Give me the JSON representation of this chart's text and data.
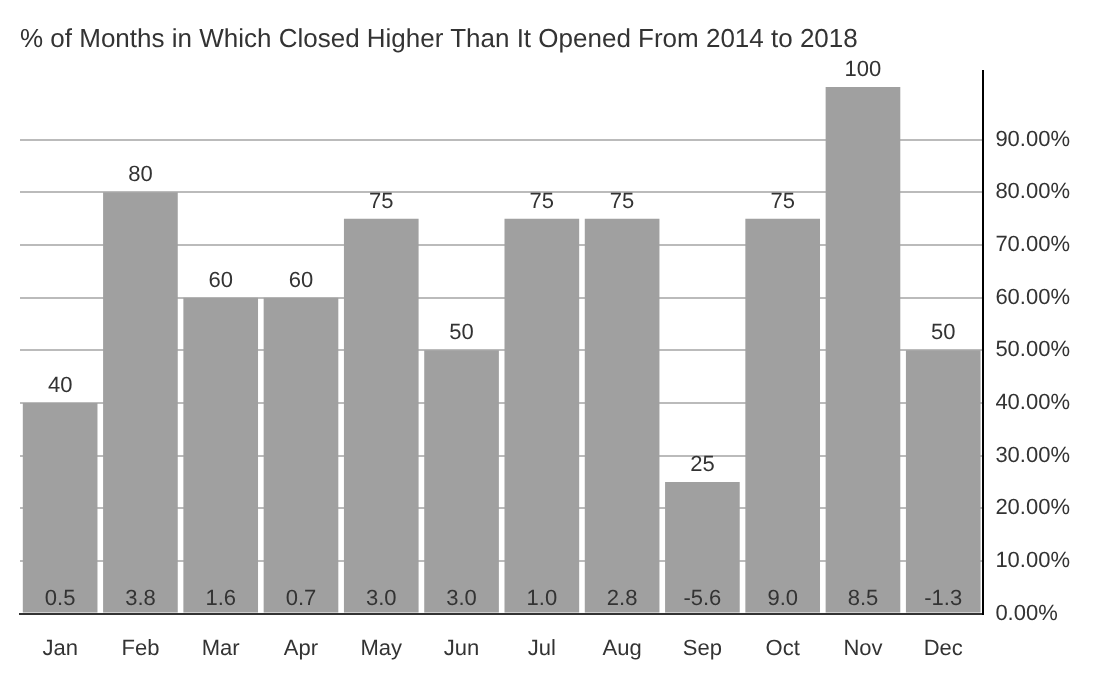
{
  "chart_data": {
    "type": "bar",
    "title": "% of Months in Which Closed Higher Than It Opened From 2014 to 2018",
    "categories": [
      "Jan",
      "Feb",
      "Mar",
      "Apr",
      "May",
      "Jun",
      "Jul",
      "Aug",
      "Sep",
      "Oct",
      "Nov",
      "Dec"
    ],
    "values": [
      40,
      80,
      60,
      60,
      75,
      50,
      75,
      75,
      25,
      75,
      100,
      50
    ],
    "color": "#a0a0a0",
    "data_labels": true,
    "ylim": [
      0,
      103
    ],
    "yticks": [
      {
        "value": 0,
        "label": "0.00%"
      },
      {
        "value": 10,
        "label": "10.00%"
      },
      {
        "value": 20,
        "label": "20.00%"
      },
      {
        "value": 30,
        "label": "30.00%"
      },
      {
        "value": 40,
        "label": "40.00%"
      },
      {
        "value": 50,
        "label": "50.00%"
      },
      {
        "value": 60,
        "label": "60.00%"
      },
      {
        "value": 70,
        "label": "70.00%"
      },
      {
        "value": 80,
        "label": "80.00%"
      },
      {
        "value": 90,
        "label": "90.00%"
      }
    ],
    "grid": "y",
    "legend": false,
    "annotations": [
      "0.5",
      "3.8",
      "1.6",
      "0.7",
      "3.0",
      "3.0",
      "1.0",
      "2.8",
      "-5.6",
      "9.0",
      "8.5",
      "-1.3"
    ]
  }
}
